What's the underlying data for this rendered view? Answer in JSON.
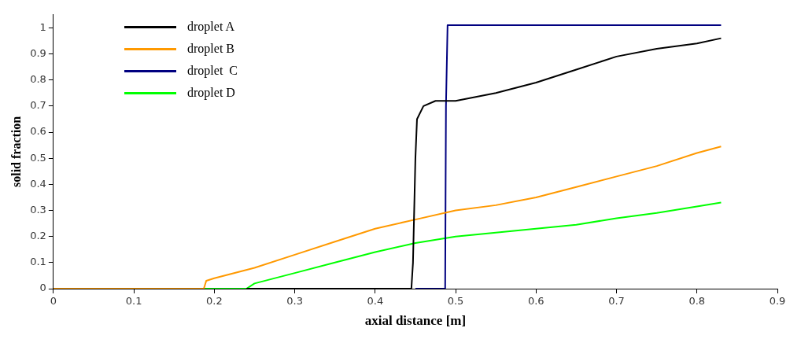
{
  "chart_data": {
    "type": "line",
    "xlabel": "axial distance [m]",
    "ylabel": "solid fraction",
    "xlim": [
      0,
      0.9
    ],
    "xticks": [
      0,
      0.1,
      0.2,
      0.3,
      0.4,
      0.5,
      0.6,
      0.7,
      0.8,
      0.9
    ],
    "ylim": [
      0,
      1.05
    ],
    "yticks": [
      0,
      0.1,
      0.2,
      0.3,
      0.4,
      0.5,
      0.6,
      0.7,
      0.8,
      0.9,
      1
    ],
    "grid": false,
    "legend": "top left",
    "marker": "none",
    "line_style": "solid",
    "series": [
      {
        "name": "droplet A",
        "color": "#000000",
        "x": [
          0.24,
          0.445,
          0.447,
          0.45,
          0.452,
          0.46,
          0.475,
          0.5,
          0.55,
          0.6,
          0.65,
          0.7,
          0.75,
          0.8,
          0.83
        ],
        "values": [
          0,
          0,
          0.1,
          0.5,
          0.65,
          0.7,
          0.72,
          0.72,
          0.75,
          0.79,
          0.84,
          0.89,
          0.92,
          0.94,
          0.96
        ]
      },
      {
        "name": "droplet B",
        "color": "#ff9900",
        "x": [
          0,
          0.187,
          0.19,
          0.2,
          0.25,
          0.3,
          0.35,
          0.4,
          0.45,
          0.5,
          0.55,
          0.6,
          0.65,
          0.7,
          0.75,
          0.8,
          0.83
        ],
        "values": [
          0,
          0,
          0.03,
          0.04,
          0.08,
          0.13,
          0.18,
          0.23,
          0.265,
          0.3,
          0.32,
          0.35,
          0.39,
          0.43,
          0.47,
          0.52,
          0.545
        ]
      },
      {
        "name": "droplet  C",
        "color": "#000080",
        "x": [
          0.45,
          0.487,
          0.488,
          0.49,
          0.5,
          0.83
        ],
        "values": [
          0,
          0,
          0.7,
          1.01,
          1.01,
          1.01
        ]
      },
      {
        "name": "droplet D",
        "color": "#00ff00",
        "x": [
          0.05,
          0.24,
          0.25,
          0.3,
          0.35,
          0.4,
          0.45,
          0.5,
          0.55,
          0.6,
          0.65,
          0.7,
          0.75,
          0.8,
          0.83
        ],
        "values": [
          0,
          0,
          0.02,
          0.06,
          0.1,
          0.14,
          0.175,
          0.2,
          0.215,
          0.23,
          0.245,
          0.27,
          0.29,
          0.315,
          0.33
        ]
      }
    ]
  }
}
